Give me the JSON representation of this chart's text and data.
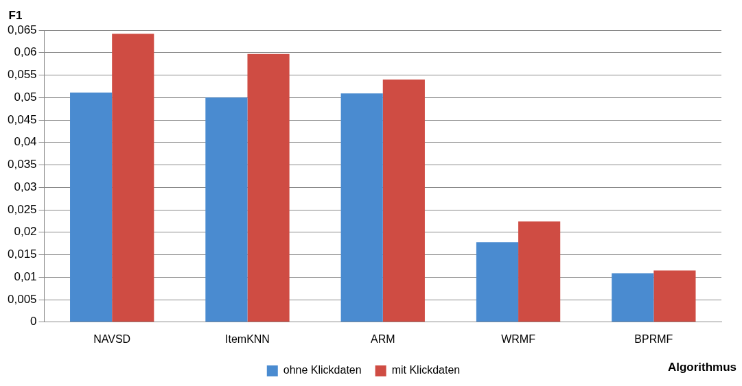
{
  "chart_data": {
    "type": "bar",
    "ylabel": "F1",
    "xlabel": "Algorithmus",
    "categories": [
      "NAVSD",
      "ItemKNN",
      "ARM",
      "WRMF",
      "BPRMF"
    ],
    "series": [
      {
        "name": "ohne Klickdaten",
        "color": "#4a8bd0",
        "values": [
          0.0511,
          0.05,
          0.0509,
          0.0178,
          0.0109
        ]
      },
      {
        "name": "mit Klickdaten",
        "color": "#cf4c43",
        "values": [
          0.0642,
          0.0597,
          0.054,
          0.0224,
          0.0115
        ]
      }
    ],
    "ylim": [
      0,
      0.065
    ],
    "yticks": [
      {
        "value": 0,
        "label": "0"
      },
      {
        "value": 0.005,
        "label": "0,005"
      },
      {
        "value": 0.01,
        "label": "0,01"
      },
      {
        "value": 0.015,
        "label": "0,015"
      },
      {
        "value": 0.02,
        "label": "0,02"
      },
      {
        "value": 0.025,
        "label": "0,025"
      },
      {
        "value": 0.03,
        "label": "0,03"
      },
      {
        "value": 0.035,
        "label": "0,035"
      },
      {
        "value": 0.04,
        "label": "0,04"
      },
      {
        "value": 0.045,
        "label": "0,045"
      },
      {
        "value": 0.05,
        "label": "0,05"
      },
      {
        "value": 0.055,
        "label": "0,055"
      },
      {
        "value": 0.06,
        "label": "0,06"
      },
      {
        "value": 0.065,
        "label": "0,065"
      }
    ],
    "grid": "y",
    "legend": "bottom"
  }
}
